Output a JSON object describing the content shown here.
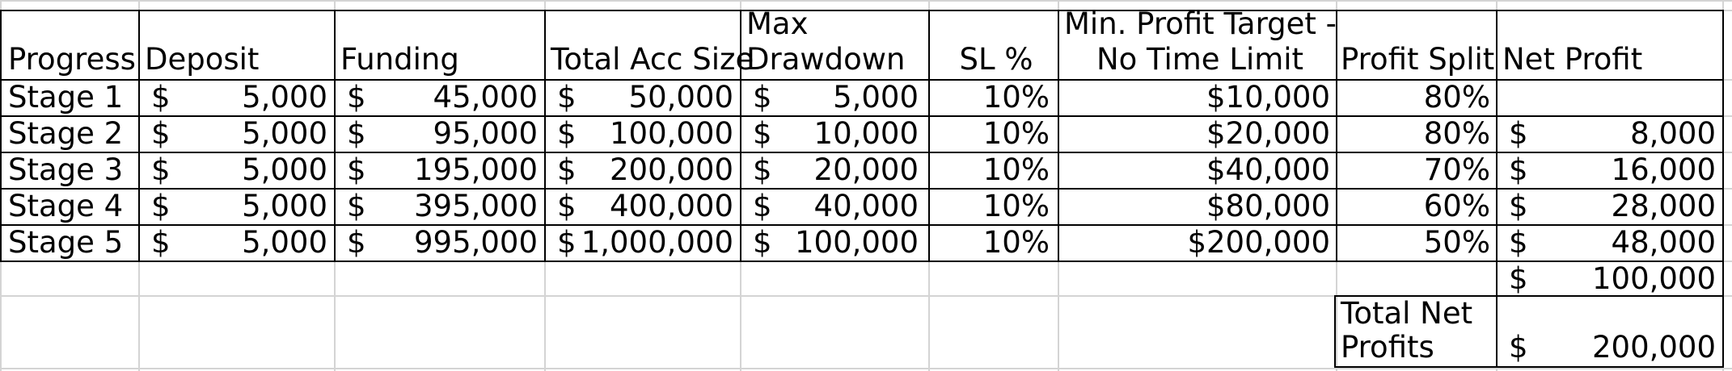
{
  "headers": {
    "progress": "Progress",
    "deposit": "Deposit",
    "funding": "Funding",
    "total_acc_size": "Total Acc Size",
    "max_drawdown_line1": "Max",
    "max_drawdown_line2": "Drawdown",
    "sl_pct": "SL %",
    "min_profit_line1": "Min. Profit Target -",
    "min_profit_line2": "No Time Limit",
    "profit_split": "Profit Split",
    "net_profit": "Net Profit"
  },
  "currency_symbol": "$",
  "rows": [
    {
      "progress": "Stage 1",
      "deposit": "5,000",
      "funding": "45,000",
      "total": "50,000",
      "drawdown": "5,000",
      "sl": "10%",
      "target": "$10,000",
      "split": "80%",
      "net": ""
    },
    {
      "progress": "Stage 2",
      "deposit": "5,000",
      "funding": "95,000",
      "total": "100,000",
      "drawdown": "10,000",
      "sl": "10%",
      "target": "$20,000",
      "split": "80%",
      "net": "8,000"
    },
    {
      "progress": "Stage 3",
      "deposit": "5,000",
      "funding": "195,000",
      "total": "200,000",
      "drawdown": "20,000",
      "sl": "10%",
      "target": "$40,000",
      "split": "70%",
      "net": "16,000"
    },
    {
      "progress": "Stage 4",
      "deposit": "5,000",
      "funding": "395,000",
      "total": "400,000",
      "drawdown": "40,000",
      "sl": "10%",
      "target": "$80,000",
      "split": "60%",
      "net": "28,000"
    },
    {
      "progress": "Stage 5",
      "deposit": "5,000",
      "funding": "995,000",
      "total": "1,000,000",
      "drawdown": "100,000",
      "sl": "10%",
      "target": "$200,000",
      "split": "50%",
      "net": "48,000"
    }
  ],
  "subtotal": {
    "net": "100,000"
  },
  "total": {
    "label_line1": "Total Net",
    "label_line2": "Profits",
    "net": "200,000"
  }
}
